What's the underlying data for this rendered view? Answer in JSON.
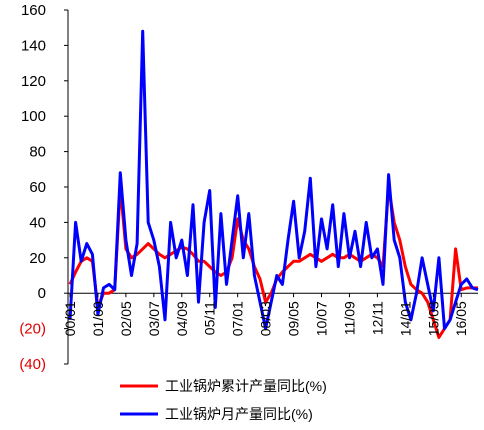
{
  "chart_data": {
    "type": "line",
    "categories": [
      "00/01",
      null,
      null,
      null,
      null,
      "01/09",
      null,
      null,
      null,
      null,
      "02/05",
      null,
      null,
      null,
      null,
      "03/07",
      null,
      null,
      null,
      null,
      "04/09",
      null,
      null,
      null,
      null,
      "05/11",
      null,
      null,
      null,
      null,
      "07/01",
      null,
      null,
      null,
      null,
      "08/03",
      null,
      null,
      null,
      null,
      "09/05",
      null,
      null,
      null,
      null,
      "10/07",
      null,
      null,
      null,
      null,
      "11/09",
      null,
      null,
      null,
      null,
      "12/11",
      null,
      null,
      null,
      null,
      "14/01",
      null,
      null,
      null,
      null,
      "15/03",
      null,
      null,
      null,
      null,
      "16/05",
      null,
      null,
      null
    ],
    "series": [
      {
        "name": "工业锅炉累计产量同比(%)",
        "color": "#ff0000",
        "values": [
          5,
          12,
          18,
          20,
          18,
          -8,
          0,
          0,
          2,
          60,
          25,
          20,
          22,
          25,
          28,
          25,
          22,
          20,
          22,
          24,
          26,
          25,
          22,
          18,
          18,
          15,
          12,
          10,
          12,
          20,
          42,
          30,
          25,
          15,
          8,
          -5,
          0,
          8,
          12,
          15,
          18,
          18,
          20,
          22,
          20,
          18,
          20,
          22,
          20,
          20,
          22,
          20,
          18,
          20,
          22,
          20,
          15,
          60,
          40,
          30,
          15,
          5,
          2,
          0,
          -5,
          -15,
          -25,
          -20,
          -15,
          25,
          2,
          3,
          3,
          3
        ]
      },
      {
        "name": "工业锅炉月产量同比(%)",
        "color": "#0000ff",
        "values": [
          -15,
          40,
          18,
          28,
          22,
          -12,
          3,
          5,
          2,
          68,
          30,
          10,
          28,
          148,
          40,
          30,
          15,
          -15,
          40,
          20,
          30,
          10,
          50,
          -5,
          40,
          58,
          -8,
          45,
          5,
          30,
          55,
          20,
          45,
          10,
          -5,
          -20,
          -5,
          10,
          5,
          30,
          52,
          20,
          35,
          65,
          15,
          42,
          25,
          50,
          15,
          45,
          20,
          35,
          15,
          40,
          20,
          25,
          5,
          67,
          30,
          20,
          -5,
          -15,
          0,
          20,
          5,
          -10,
          20,
          -20,
          -15,
          -5,
          5,
          8,
          3,
          2
        ]
      }
    ],
    "ylim": [
      -40,
      160
    ],
    "yticks": [
      {
        "value": -40,
        "label": "(40)"
      },
      {
        "value": -20,
        "label": "(20)"
      },
      0,
      20,
      40,
      60,
      80,
      100,
      120,
      140,
      160
    ]
  }
}
